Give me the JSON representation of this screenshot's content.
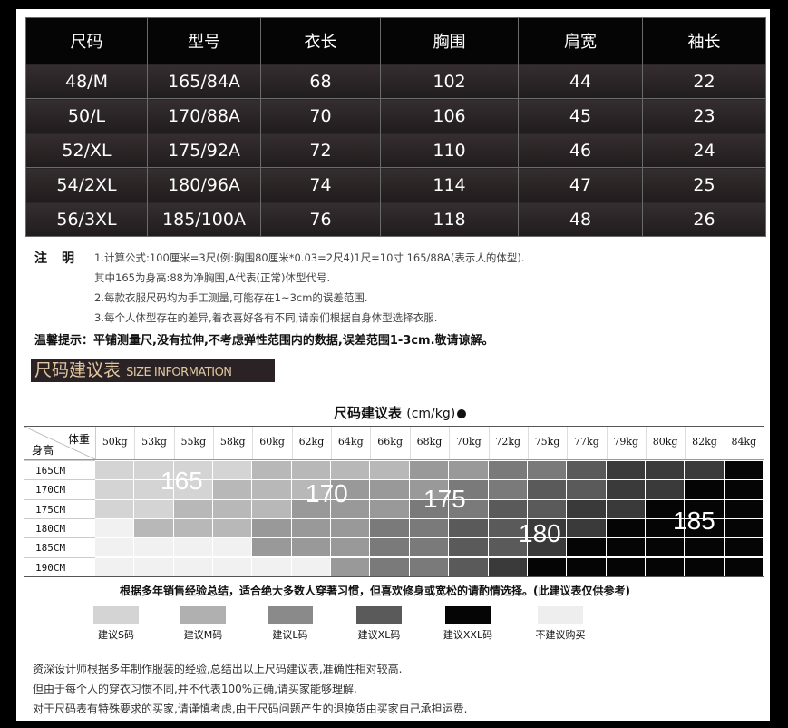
{
  "size_table": {
    "headers": [
      "尺码",
      "型号",
      "衣长",
      "胸围",
      "肩宽",
      "袖长"
    ],
    "rows": [
      [
        "48/M",
        "165/84A",
        "68",
        "102",
        "44",
        "22"
      ],
      [
        "50/L",
        "170/88A",
        "70",
        "106",
        "45",
        "23"
      ],
      [
        "52/XL",
        "175/92A",
        "72",
        "110",
        "46",
        "24"
      ],
      [
        "54/2XL",
        "180/96A",
        "74",
        "114",
        "47",
        "25"
      ],
      [
        "56/3XL",
        "185/100A",
        "76",
        "118",
        "48",
        "26"
      ]
    ]
  },
  "notes": {
    "heading": "注　明",
    "lines": [
      "1.计算公式:100厘米=3尺(例:胸围80厘米*0.03=2尺4)1尺=10寸 165/88A(表示人的体型).",
      "其中165为身高:88为净胸围,A代表(正常)体型代号.",
      "2.每款衣服尺码均为手工测量,可能存在1~3cm的误差范围.",
      "3.每个人体型存在的差异,着衣喜好各有不同,请亲们根据自身体型选择衣服."
    ],
    "warm_label": "温馨提示：",
    "warm_text": "平铺测量尺,没有拉伸,不考虑弹性范围内的数据,误差范围1-3cm.敬请谅解。"
  },
  "banner": {
    "cn": "尺码建议表",
    "en": "SIZE INFORMATION"
  },
  "recommend": {
    "title": "尺码建议表",
    "unit": "(cm/kg)",
    "weight_label": "体重",
    "height_label": "身高",
    "weights": [
      "50kg",
      "53kg",
      "55kg",
      "58kg",
      "60kg",
      "62kg",
      "64kg",
      "66kg",
      "68kg",
      "70kg",
      "72kg",
      "75kg",
      "77kg",
      "79kg",
      "80kg",
      "82kg",
      "84kg"
    ],
    "heights": [
      "165CM",
      "170CM",
      "175CM",
      "180CM",
      "185CM",
      "190CM"
    ],
    "labels": [
      "165",
      "170",
      "175",
      "180",
      "185"
    ],
    "grid_shades": [
      [
        1,
        1,
        1,
        1,
        2,
        2,
        2,
        2,
        3,
        3,
        4,
        4,
        5,
        6,
        6,
        6,
        7
      ],
      [
        1,
        1,
        1,
        2,
        2,
        2,
        3,
        3,
        3,
        4,
        4,
        5,
        5,
        6,
        6,
        7,
        7
      ],
      [
        1,
        1,
        2,
        2,
        2,
        3,
        3,
        3,
        4,
        4,
        5,
        5,
        6,
        6,
        7,
        7,
        7
      ],
      [
        0,
        2,
        2,
        2,
        3,
        3,
        3,
        4,
        4,
        5,
        5,
        6,
        6,
        7,
        7,
        7,
        7
      ],
      [
        0,
        0,
        0,
        0,
        3,
        3,
        3,
        4,
        4,
        5,
        5,
        6,
        7,
        7,
        7,
        7,
        7
      ],
      [
        0,
        0,
        0,
        0,
        0,
        0,
        3,
        4,
        4,
        5,
        6,
        7,
        7,
        7,
        7,
        7,
        7
      ]
    ],
    "shade_colors": [
      "#f1f1f1",
      "#d4d4d4",
      "#b8b8b8",
      "#999999",
      "#7a7a7a",
      "#5a5a5a",
      "#3a3a3a",
      "#050505"
    ],
    "note": "根据多年销售经验总结，适合绝大多数人穿著习惯，但喜欢修身或宽松的请酌情选择。(此建议表仅供参考)"
  },
  "legend": [
    {
      "label": "建议S码",
      "color": "#d4d4d4"
    },
    {
      "label": "建议M码",
      "color": "#b0b0b0"
    },
    {
      "label": "建议L码",
      "color": "#8a8a8a"
    },
    {
      "label": "建议XL码",
      "color": "#5a5a5a"
    },
    {
      "label": "建议XXL码",
      "color": "#050505"
    },
    {
      "label": "不建议购买",
      "color": "#eeeeee"
    }
  ],
  "footer": [
    "资深设计师根据多年制作服装的经验,总结出以上尺码建议表,准确性相对较高.",
    "但由于每个人的穿衣习惯不同,并不代表100%正确,请买家能够理解.",
    "对于尺码表有特殊要求的买家,请谨慎考虑,由于尺码问题产生的退换货由买家自己承担运费."
  ]
}
